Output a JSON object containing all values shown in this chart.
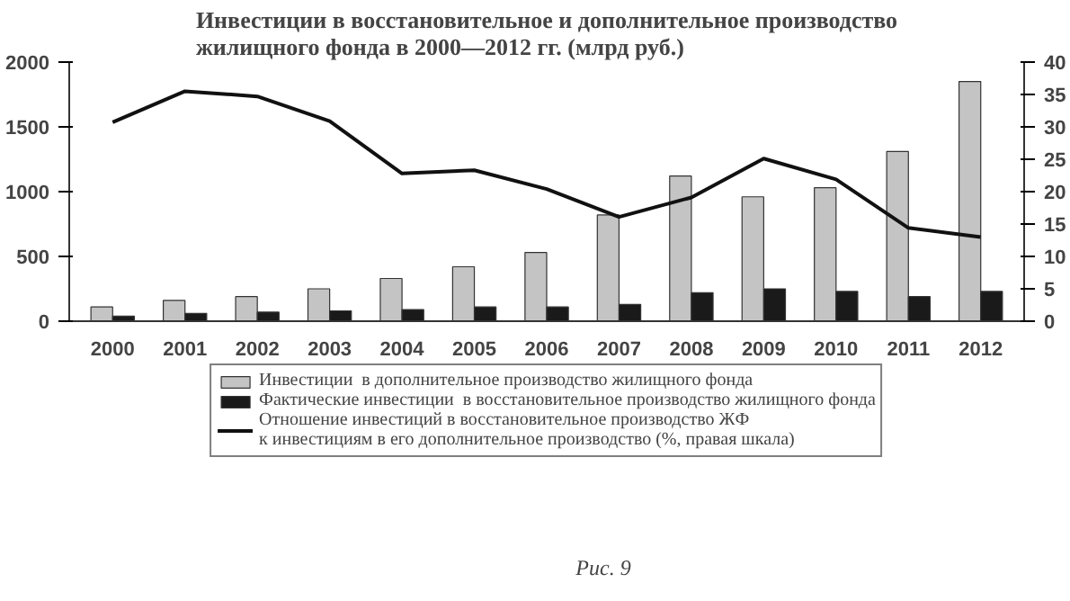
{
  "chart_data": {
    "type": "bar",
    "title": "Инвестиции в восстановительное и дополнительное производство\nжилищного фонда в 2000—2012 гг. (млрд руб.)",
    "categories": [
      "2000",
      "2001",
      "2002",
      "2003",
      "2004",
      "2005",
      "2006",
      "2007",
      "2008",
      "2009",
      "2010",
      "2011",
      "2012"
    ],
    "series": [
      {
        "name": "Инвестиции  в дополнительное производство жилищного фонда",
        "color": "#c4c4c4",
        "values": [
          110,
          160,
          190,
          250,
          330,
          420,
          530,
          820,
          1120,
          960,
          1030,
          1310,
          1850
        ]
      },
      {
        "name": "Фактические инвестиции  в восстановительное производство жилищного фонда",
        "color": "#1a1a1a",
        "values": [
          40,
          60,
          70,
          80,
          90,
          110,
          110,
          130,
          220,
          250,
          230,
          190,
          230
        ]
      },
      {
        "name": "Отношение инвестиций в восстановительное производство ЖФ\nк инвестициям в его дополнительное производство (%, правая шкала)",
        "type": "line",
        "axis": "y2",
        "color": "#111111",
        "values": [
          30.7,
          35.5,
          34.7,
          30.9,
          22.8,
          23.3,
          20.4,
          16.1,
          19.1,
          25.1,
          21.9,
          14.4,
          13.0
        ]
      }
    ],
    "ylim": [
      0,
      2000
    ],
    "yticks": [
      0,
      500,
      1000,
      1500,
      2000
    ],
    "y2lim": [
      0,
      40
    ],
    "y2ticks": [
      0,
      5,
      10,
      15,
      20,
      25,
      30,
      35,
      40
    ],
    "grid": false,
    "legend": "bottom",
    "annotations": [
      "Рис. 9"
    ]
  }
}
